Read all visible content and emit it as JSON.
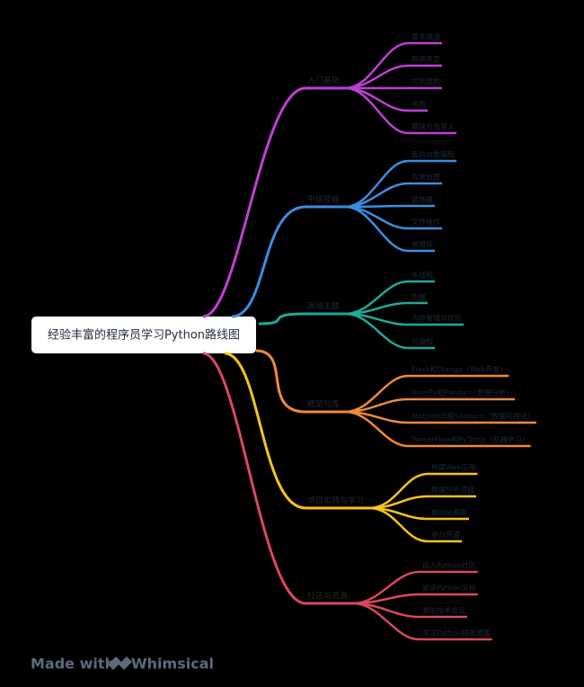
{
  "title": "经验丰富的程序员学习Python路线图",
  "branches": [
    {
      "label": "入门基础",
      "items": [
        "基本语法",
        "数据类型",
        "控制结构",
        "函数",
        "模块与包导入"
      ]
    },
    {
      "label": "中级技能",
      "items": [
        "面向对象编程",
        "异常处理",
        "装饰器",
        "文件操作",
        "常用库"
      ]
    },
    {
      "label": "高级主题",
      "items": [
        "多线程",
        "协程",
        "内存管理与优化",
        "元编程"
      ]
    },
    {
      "label": "框架与库",
      "items": [
        "Flask和Django（Web开发）",
        "NumPy和Pandas（数据分析）",
        "Matplotlib和Seaborn（数据可视化）",
        "TensorFlow和PyTorch（机器学习）"
      ]
    },
    {
      "label": "项目实践与学习",
      "items": [
        "构建Web应用",
        "数据分析项目",
        "自动化脚本",
        "参与开源"
      ]
    },
    {
      "label": "社区与资源",
      "items": [
        "加入Python社区",
        "阅读Python文档",
        "参加技术会议",
        "关注Python相关博客"
      ]
    }
  ],
  "footer": {
    "made_with": "Made with",
    "brand": "Whimsical"
  }
}
